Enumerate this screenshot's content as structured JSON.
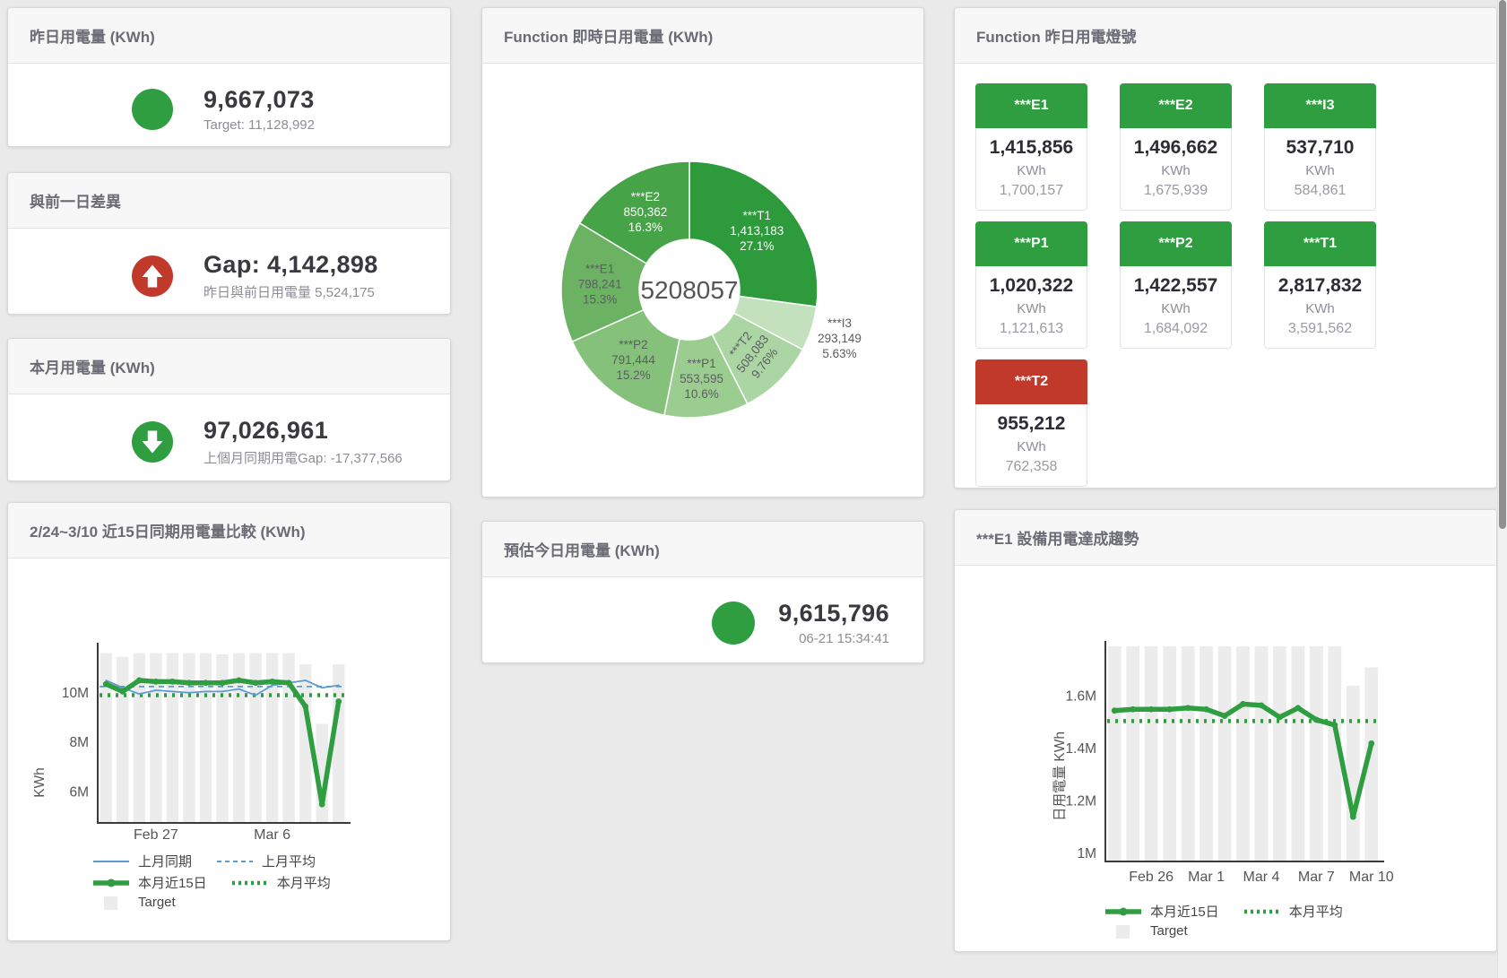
{
  "colors": {
    "green": "#2f9e41",
    "red": "#c0392b",
    "blue": "#5b9bd5",
    "target_bar": "#ececec",
    "axis": "#3a3a3a",
    "tick_text": "#555555"
  },
  "kpis": {
    "yesterday": {
      "title": "昨日用電量 (KWh)",
      "value": "9,667,073",
      "subtitle": "Target: 11,128,992",
      "color": "#2f9e41",
      "arrow": "none"
    },
    "day_gap": {
      "title": "與前一日差異",
      "value": "Gap: 4,142,898",
      "subtitle": "昨日與前日用電量 5,524,175",
      "color": "#c0392b",
      "arrow": "up"
    },
    "month": {
      "title": "本月用電量 (KWh)",
      "value": "97,026,961",
      "subtitle": "上個月同期用電Gap: -17,377,566",
      "color": "#2f9e41",
      "arrow": "down"
    },
    "forecast": {
      "title": "預估今日用電量 (KWh)",
      "value": "9,615,796",
      "subtitle": "06-21 15:34:41",
      "color": "#2f9e41",
      "arrow": "none"
    }
  },
  "lights": {
    "title": "Function 昨日用電燈號",
    "tiles": [
      {
        "label": "***E1",
        "value": "1,415,856",
        "unit": "KWh",
        "target": "1,700,157",
        "color": "#2f9e41"
      },
      {
        "label": "***E2",
        "value": "1,496,662",
        "unit": "KWh",
        "target": "1,675,939",
        "color": "#2f9e41"
      },
      {
        "label": "***I3",
        "value": "537,710",
        "unit": "KWh",
        "target": "584,861",
        "color": "#2f9e41"
      },
      {
        "label": "***P1",
        "value": "1,020,322",
        "unit": "KWh",
        "target": "1,121,613",
        "color": "#2f9e41"
      },
      {
        "label": "***P2",
        "value": "1,422,557",
        "unit": "KWh",
        "target": "1,684,092",
        "color": "#2f9e41"
      },
      {
        "label": "***T1",
        "value": "2,817,832",
        "unit": "KWh",
        "target": "3,591,562",
        "color": "#2f9e41"
      },
      {
        "label": "***T2",
        "value": "955,212",
        "unit": "KWh",
        "target": "762,358",
        "color": "#c0392b"
      }
    ]
  },
  "chart_data": [
    {
      "id": "donut",
      "type": "pie",
      "title": "Function 即時日用電量 (KWh)",
      "center_total": "5208057",
      "slices": [
        {
          "label": "***T1",
          "value": 1413183,
          "display": "1,413,183",
          "pct": "27.1%",
          "color": "#2d9b3c",
          "text": "#ffffff",
          "pos": "inside",
          "rot": 0
        },
        {
          "label": "***I3",
          "value": 293149,
          "display": "293,149",
          "pct": "5.63%",
          "color": "#c3e1bc",
          "text": "#5c5c62",
          "pos": "outside",
          "rot": 0
        },
        {
          "label": "***T2",
          "value": 508083,
          "display": "508,083",
          "pct": "9.76%",
          "color": "#abd5a2",
          "text": "#5c5c62",
          "pos": "inside",
          "rot": -52
        },
        {
          "label": "***P1",
          "value": 553595,
          "display": "553,595",
          "pct": "10.6%",
          "color": "#9bcd91",
          "text": "#5c5c62",
          "pos": "inside",
          "rot": 0
        },
        {
          "label": "***P2",
          "value": 791444,
          "display": "791,444",
          "pct": "15.2%",
          "color": "#85c17b",
          "text": "#5c5c62",
          "pos": "inside",
          "rot": 0
        },
        {
          "label": "***E1",
          "value": 798241,
          "display": "798,241",
          "pct": "15.3%",
          "color": "#6bb363",
          "text": "#5c5c62",
          "pos": "inside",
          "rot": 0
        },
        {
          "label": "***E2",
          "value": 850362,
          "display": "850,362",
          "pct": "16.3%",
          "color": "#47a347",
          "text": "#ffffff",
          "pos": "inside",
          "rot": 0
        }
      ]
    },
    {
      "id": "compare",
      "type": "line",
      "title": "2/24~3/10 近15日同期用電量比較 (KWh)",
      "ylabel": "KWh",
      "ylim": [
        4.75,
        11.8
      ],
      "yticks": [
        {
          "label": "6M",
          "v": 6
        },
        {
          "label": "8M",
          "v": 8
        },
        {
          "label": "10M",
          "v": 10
        }
      ],
      "xticks": [
        {
          "label": "Feb 27",
          "i": 3
        },
        {
          "label": "Mar 6",
          "i": 10
        }
      ],
      "target_bars": [
        11.6,
        11.45,
        11.6,
        11.6,
        11.6,
        11.6,
        11.6,
        11.55,
        11.6,
        11.6,
        11.6,
        11.6,
        11.15,
        8.75,
        11.15
      ],
      "series": [
        {
          "name": "上月同期",
          "style": "thin",
          "color": "#5b9bd5",
          "values": [
            10.5,
            10.2,
            9.95,
            10.1,
            10.05,
            10.0,
            10.05,
            10.05,
            10.15,
            9.9,
            10.3,
            10.4,
            10.5,
            10.2,
            10.3
          ]
        },
        {
          "name": "上月平均",
          "style": "dashed",
          "color": "#5b9bd5",
          "avg": 10.25
        },
        {
          "name": "本月近15日",
          "style": "thick",
          "color": "#2f9e41",
          "values": [
            10.35,
            10.05,
            10.5,
            10.45,
            10.45,
            10.4,
            10.4,
            10.4,
            10.5,
            10.4,
            10.45,
            10.4,
            9.45,
            5.5,
            9.65
          ]
        },
        {
          "name": "本月平均",
          "style": "dotted",
          "color": "#2f9e41",
          "avg": 9.9
        }
      ],
      "legend_rows": [
        [
          {
            "swatch": "thin",
            "color": "#5b9bd5",
            "label": "上月同期"
          },
          {
            "swatch": "dashed",
            "color": "#5b9bd5",
            "label": "上月平均"
          }
        ],
        [
          {
            "swatch": "thick",
            "color": "#2f9e41",
            "label": "本月近15日"
          },
          {
            "swatch": "dotted",
            "color": "#2f9e41",
            "label": "本月平均"
          }
        ],
        [
          {
            "swatch": "box",
            "color": "#ececec",
            "label": "Target"
          }
        ]
      ]
    },
    {
      "id": "trend",
      "type": "line",
      "title": "***E1 設備用電達成趨勢",
      "ylabel": "日用電量 KWh",
      "ylim": [
        0.97,
        1.79
      ],
      "yticks": [
        {
          "label": "1M",
          "v": 1
        },
        {
          "label": "1.2M",
          "v": 1.2
        },
        {
          "label": "1.4M",
          "v": 1.4
        },
        {
          "label": "1.6M",
          "v": 1.6
        }
      ],
      "xticks": [
        {
          "label": "Feb 26",
          "i": 2
        },
        {
          "label": "Mar 1",
          "i": 5
        },
        {
          "label": "Mar 4",
          "i": 8
        },
        {
          "label": "Mar 7",
          "i": 11
        },
        {
          "label": "Mar 10",
          "i": 14
        }
      ],
      "target_bars": [
        1.79,
        1.79,
        1.79,
        1.79,
        1.79,
        1.79,
        1.79,
        1.79,
        1.79,
        1.79,
        1.79,
        1.79,
        1.79,
        1.64,
        1.71
      ],
      "series": [
        {
          "name": "本月近15日",
          "style": "thick",
          "color": "#2f9e41",
          "values": [
            1.545,
            1.55,
            1.55,
            1.55,
            1.555,
            1.55,
            1.525,
            1.57,
            1.565,
            1.52,
            1.555,
            1.51,
            1.49,
            1.14,
            1.42
          ]
        },
        {
          "name": "本月平均",
          "style": "dotted",
          "color": "#2f9e41",
          "avg": 1.505
        }
      ],
      "legend_rows": [
        [
          {
            "swatch": "thick",
            "color": "#2f9e41",
            "label": "本月近15日"
          },
          {
            "swatch": "dotted",
            "color": "#2f9e41",
            "label": "本月平均"
          }
        ],
        [
          {
            "swatch": "box",
            "color": "#ececec",
            "label": "Target"
          }
        ]
      ]
    }
  ]
}
